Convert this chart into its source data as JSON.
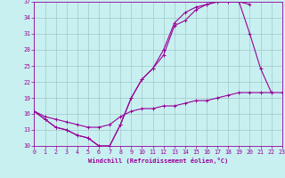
{
  "xlabel": "Windchill (Refroidissement éolien,°C)",
  "bg_color": "#c8f0f0",
  "line_color": "#990099",
  "grid_color": "#a0c8c8",
  "xlim": [
    0,
    23
  ],
  "ylim": [
    10,
    37
  ],
  "yticks": [
    10,
    13,
    16,
    19,
    22,
    25,
    28,
    31,
    34,
    37
  ],
  "xticks": [
    0,
    1,
    2,
    3,
    4,
    5,
    6,
    7,
    8,
    9,
    10,
    11,
    12,
    13,
    14,
    15,
    16,
    17,
    18,
    19,
    20,
    21,
    22,
    23
  ],
  "series1_x": [
    0,
    1,
    2,
    3,
    4,
    5,
    6,
    7,
    8,
    9,
    10,
    11,
    12,
    13,
    14,
    15,
    16,
    17,
    18,
    19,
    20,
    21,
    22,
    23
  ],
  "series1_y": [
    16.5,
    15.0,
    13.5,
    13.0,
    12.0,
    11.5,
    10.0,
    10.0,
    14.0,
    19.0,
    22.5,
    24.5,
    27.0,
    32.5,
    33.5,
    35.5,
    36.5,
    37.0,
    37.0,
    37.0,
    36.5,
    null,
    null,
    null
  ],
  "series2_x": [
    0,
    1,
    2,
    3,
    4,
    5,
    6,
    7,
    8,
    9,
    10,
    11,
    12,
    13,
    14,
    15,
    16,
    17,
    18,
    19,
    20,
    21,
    22,
    23
  ],
  "series2_y": [
    16.5,
    15.0,
    13.5,
    13.0,
    12.0,
    11.5,
    10.0,
    10.0,
    14.0,
    19.0,
    22.5,
    24.5,
    28.0,
    33.0,
    35.0,
    36.0,
    36.5,
    37.0,
    37.0,
    37.0,
    31.0,
    24.5,
    20.0,
    null
  ],
  "series3_x": [
    0,
    1,
    2,
    3,
    4,
    5,
    6,
    7,
    8,
    9,
    10,
    11,
    12,
    13,
    14,
    15,
    16,
    17,
    18,
    19,
    20,
    21,
    22,
    23
  ],
  "series3_y": [
    16.5,
    15.5,
    15.0,
    14.5,
    14.0,
    13.5,
    13.5,
    14.0,
    15.5,
    16.5,
    17.0,
    17.0,
    17.5,
    17.5,
    18.0,
    18.5,
    18.5,
    19.0,
    19.5,
    20.0,
    20.0,
    20.0,
    20.0,
    20.0
  ]
}
